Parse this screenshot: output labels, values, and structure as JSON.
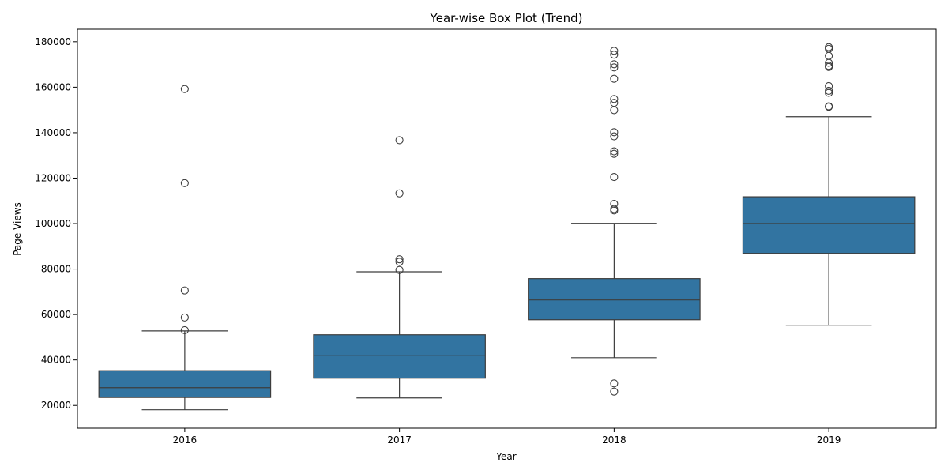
{
  "chart_data": {
    "type": "box",
    "title": "Year-wise Box Plot (Trend)",
    "xlabel": "Year",
    "ylabel": "Page Views",
    "categories": [
      "2016",
      "2017",
      "2018",
      "2019"
    ],
    "yticks": [
      20000,
      40000,
      60000,
      80000,
      100000,
      120000,
      140000,
      160000,
      180000
    ],
    "ylim": [
      10000,
      185500
    ],
    "grid": false,
    "box_color": "#3274a1",
    "line_color": "#3d3d3d",
    "boxes": [
      {
        "category": "2016",
        "whisker_low": 18100,
        "q1": 23500,
        "median": 27800,
        "q3": 35300,
        "whisker_high": 52800,
        "outliers": [
          159200,
          117800,
          70600,
          58700,
          53100
        ]
      },
      {
        "category": "2017",
        "whisker_low": 23300,
        "q1": 32000,
        "median": 42100,
        "q3": 51100,
        "whisker_high": 78800,
        "outliers": [
          136700,
          113300,
          84300,
          83200,
          79600
        ]
      },
      {
        "category": "2018",
        "whisker_low": 41000,
        "q1": 57700,
        "median": 66400,
        "q3": 75800,
        "whisker_high": 100100,
        "outliers": [
          176000,
          174300,
          170100,
          168700,
          163700,
          154800,
          153100,
          149900,
          140200,
          138400,
          131800,
          130700,
          120500,
          108700,
          106400,
          105800,
          29700,
          26100
        ]
      },
      {
        "category": "2019",
        "whisker_low": 55300,
        "q1": 86900,
        "median": 100000,
        "q3": 111800,
        "whisker_high": 147000,
        "outliers": [
          177600,
          176900,
          173800,
          170700,
          169400,
          168900,
          160500,
          158400,
          157500,
          151600,
          151400
        ]
      }
    ]
  }
}
